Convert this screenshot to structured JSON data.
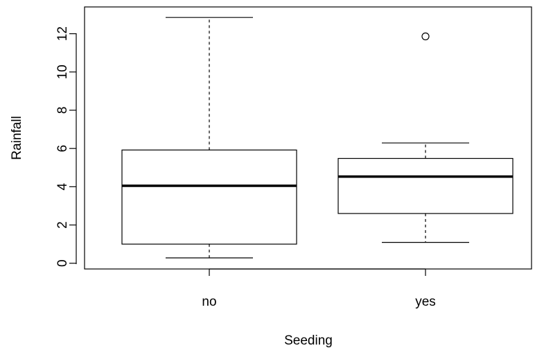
{
  "chart_data": {
    "type": "boxplot",
    "xlabel": "Seeding",
    "ylabel": "Rainfall",
    "ylim": [
      -0.3,
      13.4
    ],
    "yticks": [
      "0",
      "2",
      "4",
      "6",
      "8",
      "10",
      "12"
    ],
    "categories": [
      "no",
      "yes"
    ],
    "boxes": [
      {
        "category": "no",
        "whisker_low": 0.28,
        "q1": 1.0,
        "median": 4.05,
        "q3": 5.92,
        "whisker_high": 12.85,
        "outliers": []
      },
      {
        "category": "yes",
        "whisker_low": 1.09,
        "q1": 2.6,
        "median": 4.53,
        "q3": 5.48,
        "whisker_high": 6.29,
        "outliers": [
          11.86
        ]
      }
    ],
    "grid": false,
    "legend": "none",
    "colors": {
      "stroke": "#000000",
      "fill": "#ffffff"
    }
  }
}
